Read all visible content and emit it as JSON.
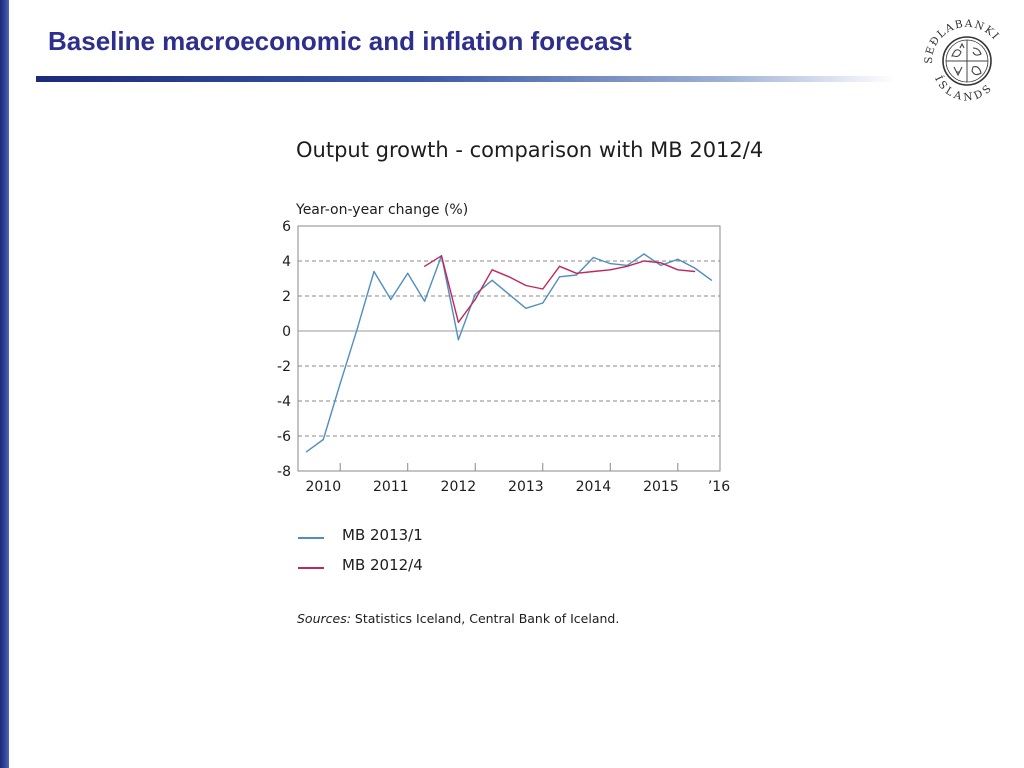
{
  "slide": {
    "title": "Baseline macroeconomic and inflation forecast",
    "logo": {
      "name": "Sedlabanki Islands seal",
      "text_top": "SEÐLABANKI",
      "text_bottom": "ÍSLANDS"
    }
  },
  "colors": {
    "title": "#2e2e8c",
    "rule": "#1c2a7a",
    "mb2013": "#4f8fc0",
    "mb2012": "#c0285d"
  },
  "chart_data": {
    "type": "line",
    "title": "Output growth - comparison with MB 2012/4",
    "ylabel": "Year-on-year change (%)",
    "xlabel": "",
    "ylim": [
      -8,
      6
    ],
    "yticks": [
      "6",
      "4",
      "2",
      "0",
      "-2",
      "-4",
      "-6",
      "-8"
    ],
    "x_range": [
      2009.875,
      2016.125
    ],
    "xtick_labels": [
      "2010",
      "2011",
      "2012",
      "2013",
      "2014",
      "2015",
      "’16"
    ],
    "grid": "dashed horizontal",
    "legend_position": "below",
    "series": [
      {
        "name": "MB 2013/1",
        "color": "#4f8fc0",
        "x": [
          2010.0,
          2010.25,
          2010.5,
          2010.75,
          2011.0,
          2011.25,
          2011.5,
          2011.75,
          2012.0,
          2012.25,
          2012.5,
          2012.75,
          2013.0,
          2013.25,
          2013.5,
          2013.75,
          2014.0,
          2014.25,
          2014.5,
          2014.75,
          2015.0,
          2015.25,
          2015.5,
          2015.75,
          2016.0
        ],
        "values": [
          -6.9,
          -6.2,
          -3.0,
          0.1,
          3.4,
          1.8,
          3.3,
          1.7,
          4.3,
          -0.5,
          2.1,
          2.9,
          2.1,
          1.3,
          1.6,
          3.1,
          3.2,
          4.2,
          3.85,
          3.75,
          4.4,
          3.75,
          4.1,
          3.6,
          2.9
        ]
      },
      {
        "name": "MB 2012/4",
        "color": "#c0285d",
        "x": [
          2011.75,
          2012.0,
          2012.25,
          2012.5,
          2012.75,
          2013.0,
          2013.25,
          2013.5,
          2013.75,
          2014.0,
          2014.25,
          2014.5,
          2014.75,
          2015.0,
          2015.25,
          2015.5,
          2015.75
        ],
        "values": [
          3.7,
          4.3,
          0.5,
          1.8,
          3.5,
          3.1,
          2.6,
          2.4,
          3.7,
          3.3,
          3.4,
          3.5,
          3.7,
          4.0,
          3.9,
          3.5,
          3.4
        ]
      }
    ]
  },
  "footnote": {
    "label": "Sources:",
    "text": " Statistics Iceland, Central Bank of Iceland."
  }
}
